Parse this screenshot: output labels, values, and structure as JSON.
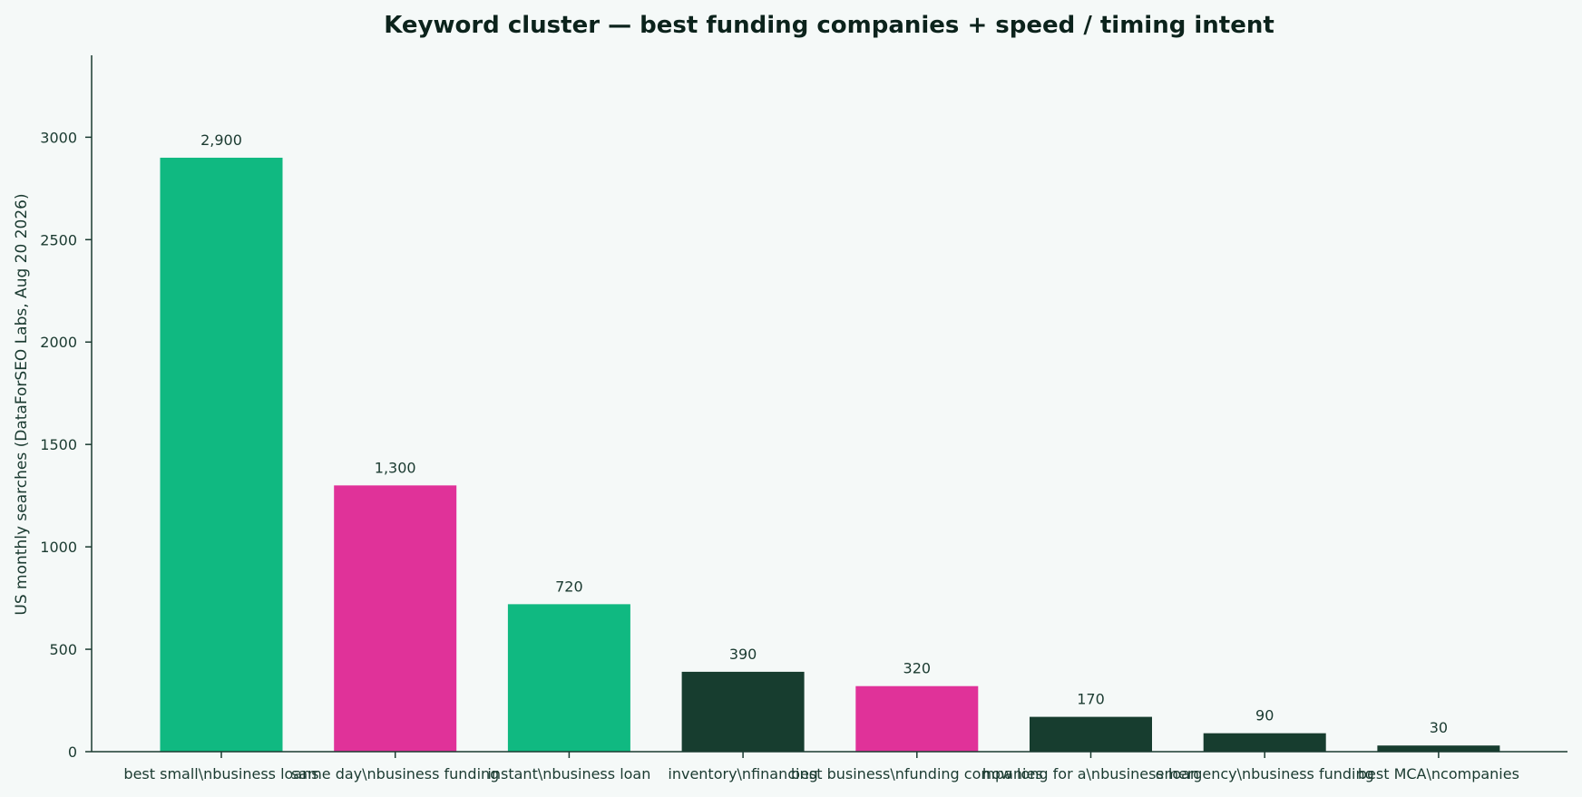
{
  "chart_data": {
    "type": "bar",
    "title": "Keyword cluster — best funding companies + speed / timing intent",
    "xlabel": "",
    "ylabel": "US monthly searches (DataForSEO Labs, Aug 20 2026)",
    "categories": [
      "best small\\nbusiness loans",
      "same day\\nbusiness funding",
      "instant\\nbusiness loan",
      "inventory\\nfinancing",
      "best business\\nfunding companies",
      "how long for a\\nbusiness loan",
      "emergency\\nbusiness funding",
      "best MCA\\ncompanies"
    ],
    "values": [
      2900,
      1300,
      720,
      390,
      320,
      170,
      90,
      30
    ],
    "value_labels": [
      "2,900",
      "1,300",
      "720",
      "390",
      "320",
      "170",
      "90",
      "30"
    ],
    "bar_colors": [
      "#10b981",
      "#e03299",
      "#10b981",
      "#173d2f",
      "#e03299",
      "#173d2f",
      "#173d2f",
      "#173d2f"
    ],
    "ylim": [
      0,
      3400
    ],
    "yticks": [
      0,
      500,
      1000,
      1500,
      2000,
      2500,
      3000
    ],
    "ytick_labels": [
      "0",
      "500",
      "1000",
      "1500",
      "2000",
      "2500",
      "3000"
    ],
    "grid": false,
    "legend": "none"
  }
}
